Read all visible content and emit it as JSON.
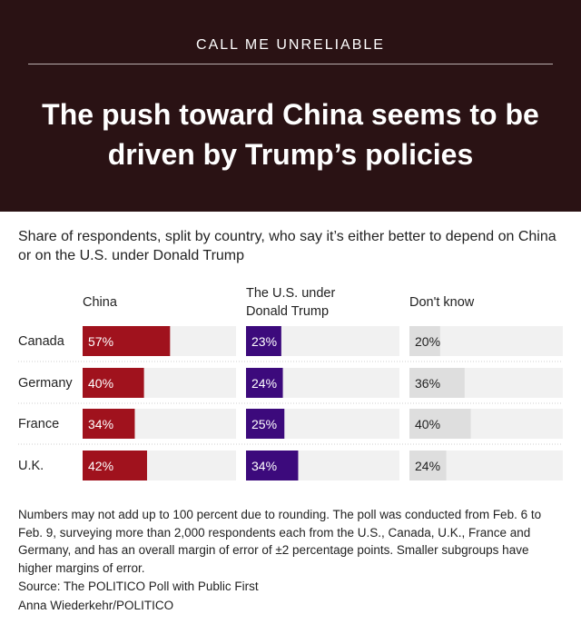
{
  "header": {
    "kicker": "CALL ME UNRELIABLE",
    "title": "The push toward China seems to be driven by Trump’s policies"
  },
  "subtitle": "Share of respondents, split by country, who say it’s either better to depend on China or on the U.S. under Donald Trump",
  "colors": {
    "header_bg": "#2a1214",
    "china": "#a0121d",
    "us": "#3c0a7c",
    "dont_know": "#dedede",
    "track": "#f1f1f1"
  },
  "chart_data": {
    "type": "bar",
    "orientation": "horizontal",
    "categories": [
      "Canada",
      "Germany",
      "France",
      "U.K."
    ],
    "series": [
      {
        "name": "China",
        "values": [
          57,
          40,
          34,
          42
        ],
        "color": "#a0121d"
      },
      {
        "name": "The U.S. under Donald Trump",
        "values": [
          23,
          24,
          25,
          34
        ],
        "color": "#3c0a7c"
      },
      {
        "name": "Don't know",
        "values": [
          20,
          36,
          40,
          24
        ],
        "color": "#dedede"
      }
    ],
    "value_suffix": "%",
    "xlim": [
      0,
      100
    ]
  },
  "footer": {
    "note": "Numbers may not add up to 100 percent due to rounding. The poll was conducted from Feb. 6 to Feb. 9, surveying more than 2,000 respondents each from the U.S., Canada, U.K., France and Germany, and has an overall margin of error of ±2 percentage points. Smaller subgroups have higher margins of error.",
    "source": "Source: The POLITICO Poll with Public First",
    "credit": "Anna Wiederkehr/POLITICO"
  }
}
